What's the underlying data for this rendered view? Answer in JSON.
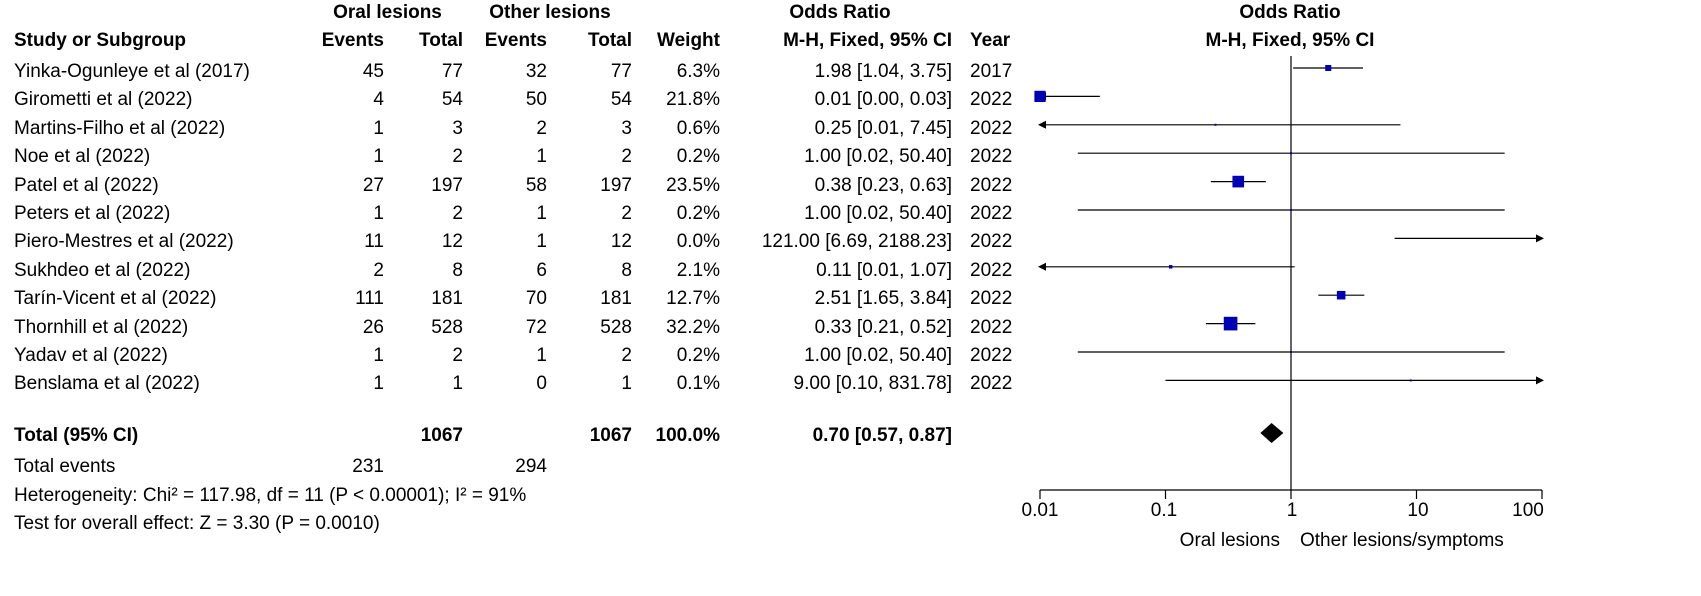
{
  "header": {
    "oral_group": "Oral lesions",
    "other_group": "Other lesions",
    "or_title_table": "Odds Ratio",
    "or_title_plot": "Odds Ratio",
    "col_study": "Study or Subgroup",
    "col_events1": "Events",
    "col_total1": "Total",
    "col_events2": "Events",
    "col_total2": "Total",
    "col_weight": "Weight",
    "col_method_table": "M-H, Fixed, 95% CI",
    "col_year": "Year",
    "col_method_plot": "M-H, Fixed, 95% CI"
  },
  "studies": [
    {
      "name": "Yinka-Ogunleye et al (2017)",
      "ev1": "45",
      "tot1": "77",
      "ev2": "32",
      "tot2": "77",
      "weight": "6.3%",
      "ci": "1.98 [1.04, 3.75]",
      "year": "2017"
    },
    {
      "name": "Girometti et al (2022)",
      "ev1": "4",
      "tot1": "54",
      "ev2": "50",
      "tot2": "54",
      "weight": "21.8%",
      "ci": "0.01 [0.00, 0.03]",
      "year": "2022"
    },
    {
      "name": "Martins-Filho et al (2022)",
      "ev1": "1",
      "tot1": "3",
      "ev2": "2",
      "tot2": "3",
      "weight": "0.6%",
      "ci": "0.25 [0.01, 7.45]",
      "year": "2022"
    },
    {
      "name": "Noe et al (2022)",
      "ev1": "1",
      "tot1": "2",
      "ev2": "1",
      "tot2": "2",
      "weight": "0.2%",
      "ci": "1.00 [0.02, 50.40]",
      "year": "2022"
    },
    {
      "name": "Patel et al (2022)",
      "ev1": "27",
      "tot1": "197",
      "ev2": "58",
      "tot2": "197",
      "weight": "23.5%",
      "ci": "0.38 [0.23, 0.63]",
      "year": "2022"
    },
    {
      "name": "Peters et al (2022)",
      "ev1": "1",
      "tot1": "2",
      "ev2": "1",
      "tot2": "2",
      "weight": "0.2%",
      "ci": "1.00 [0.02, 50.40]",
      "year": "2022"
    },
    {
      "name": "Piero-Mestres et al (2022)",
      "ev1": "11",
      "tot1": "12",
      "ev2": "1",
      "tot2": "12",
      "weight": "0.0%",
      "ci": "121.00 [6.69, 2188.23]",
      "year": "2022"
    },
    {
      "name": "Sukhdeo et al (2022)",
      "ev1": "2",
      "tot1": "8",
      "ev2": "6",
      "tot2": "8",
      "weight": "2.1%",
      "ci": "0.11 [0.01, 1.07]",
      "year": "2022"
    },
    {
      "name": "Tarín-Vicent et al (2022)",
      "ev1": "111",
      "tot1": "181",
      "ev2": "70",
      "tot2": "181",
      "weight": "12.7%",
      "ci": "2.51 [1.65, 3.84]",
      "year": "2022"
    },
    {
      "name": "Thornhill et al (2022)",
      "ev1": "26",
      "tot1": "528",
      "ev2": "72",
      "tot2": "528",
      "weight": "32.2%",
      "ci": "0.33 [0.21, 0.52]",
      "year": "2022"
    },
    {
      "name": "Yadav et al (2022)",
      "ev1": "1",
      "tot1": "2",
      "ev2": "1",
      "tot2": "2",
      "weight": "0.2%",
      "ci": "1.00 [0.02, 50.40]",
      "year": "2022"
    },
    {
      "name": "Benslama et al (2022)",
      "ev1": "1",
      "tot1": "1",
      "ev2": "0",
      "tot2": "1",
      "weight": "0.1%",
      "ci": "9.00 [0.10, 831.78]",
      "year": "2022"
    }
  ],
  "total": {
    "label": "Total (95% CI)",
    "tot1": "1067",
    "tot2": "1067",
    "weight": "100.0%",
    "ci": "0.70 [0.57, 0.87]"
  },
  "total_events": {
    "label": "Total events",
    "ev1": "231",
    "ev2": "294"
  },
  "heterogeneity": "Heterogeneity: Chi² = 117.98, df = 11 (P < 0.00001); I² = 91%",
  "overall_effect": "Test for overall effect: Z = 3.30 (P = 0.0010)",
  "axis": {
    "ticks": [
      "0.01",
      "0.1",
      "1",
      "10",
      "100"
    ],
    "favours_left": "Oral lesions",
    "favours_right": "Other lesions/symptoms"
  },
  "chart_data": {
    "type": "forest",
    "scale": "log",
    "xlim": [
      0.01,
      100
    ],
    "reference_line": 1,
    "marker_color": "#0000b4",
    "studies": [
      {
        "name": "Yinka-Ogunleye et al (2017)",
        "or": 1.98,
        "lo": 1.04,
        "hi": 3.75,
        "weight": 6.3
      },
      {
        "name": "Girometti et al (2022)",
        "or": 0.01,
        "lo": 0.0,
        "hi": 0.03,
        "weight": 21.8
      },
      {
        "name": "Martins-Filho et al (2022)",
        "or": 0.25,
        "lo": 0.01,
        "hi": 7.45,
        "weight": 0.6
      },
      {
        "name": "Noe et al (2022)",
        "or": 1.0,
        "lo": 0.02,
        "hi": 50.4,
        "weight": 0.2
      },
      {
        "name": "Patel et al (2022)",
        "or": 0.38,
        "lo": 0.23,
        "hi": 0.63,
        "weight": 23.5
      },
      {
        "name": "Peters et al (2022)",
        "or": 1.0,
        "lo": 0.02,
        "hi": 50.4,
        "weight": 0.2
      },
      {
        "name": "Piero-Mestres et al (2022)",
        "or": 121.0,
        "lo": 6.69,
        "hi": 2188.23,
        "weight": 0.0
      },
      {
        "name": "Sukhdeo et al (2022)",
        "or": 0.11,
        "lo": 0.01,
        "hi": 1.07,
        "weight": 2.1
      },
      {
        "name": "Tarín-Vicent et al (2022)",
        "or": 2.51,
        "lo": 1.65,
        "hi": 3.84,
        "weight": 12.7
      },
      {
        "name": "Thornhill et al (2022)",
        "or": 0.33,
        "lo": 0.21,
        "hi": 0.52,
        "weight": 32.2
      },
      {
        "name": "Yadav et al (2022)",
        "or": 1.0,
        "lo": 0.02,
        "hi": 50.4,
        "weight": 0.2
      },
      {
        "name": "Benslama et al (2022)",
        "or": 9.0,
        "lo": 0.1,
        "hi": 831.78,
        "weight": 0.1
      }
    ],
    "pooled": {
      "or": 0.7,
      "lo": 0.57,
      "hi": 0.87
    }
  }
}
